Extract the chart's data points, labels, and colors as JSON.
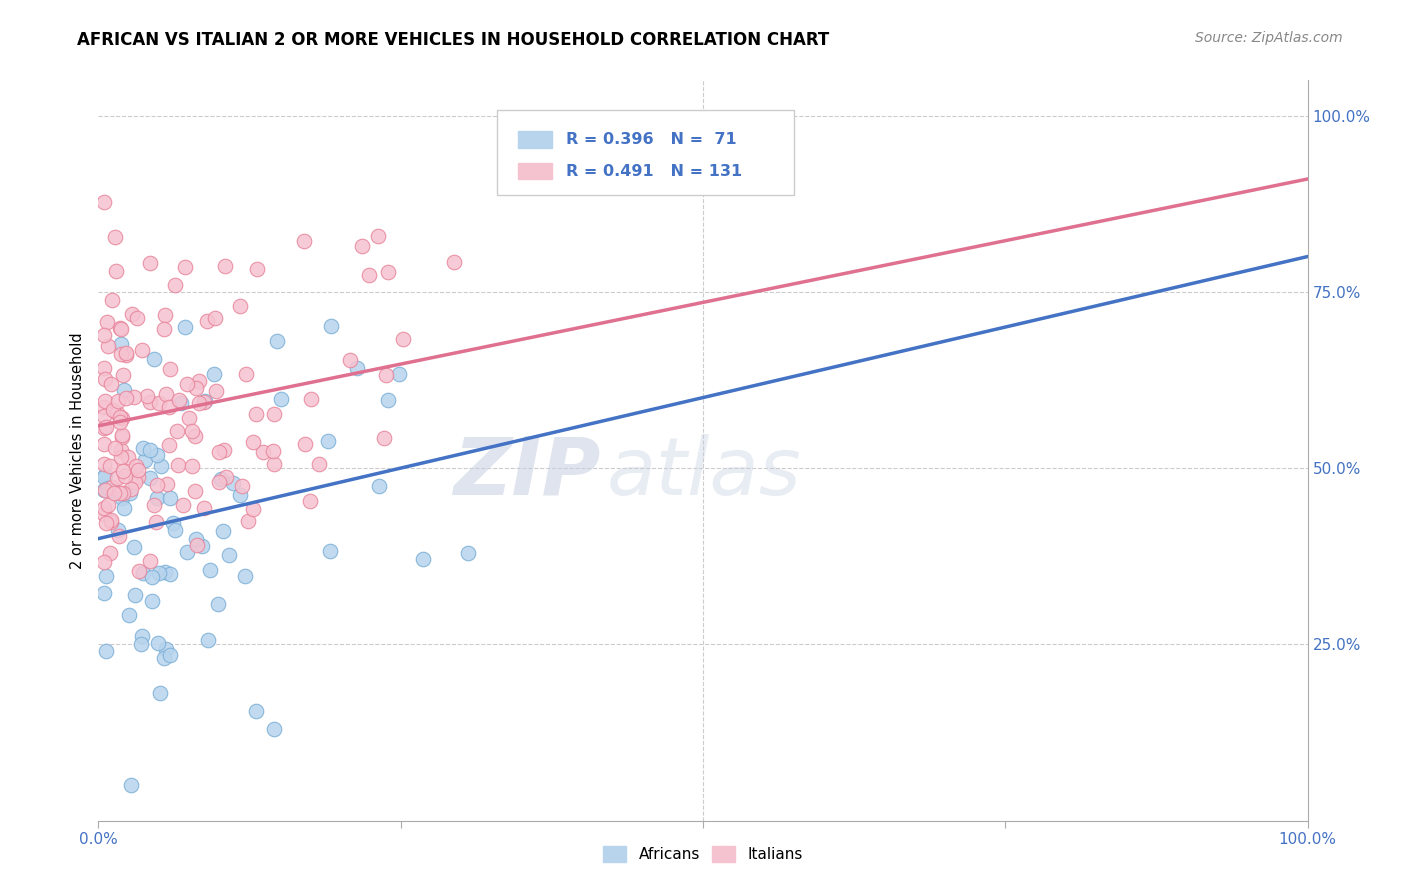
{
  "title": "AFRICAN VS ITALIAN 2 OR MORE VEHICLES IN HOUSEHOLD CORRELATION CHART",
  "source_text": "Source: ZipAtlas.com",
  "ylabel": "2 or more Vehicles in Household",
  "R_africans": 0.396,
  "N_africans": 71,
  "R_italians": 0.491,
  "N_italians": 131,
  "color_african_fill": "#b8d4ed",
  "color_african_edge": "#7aaed6",
  "color_italian_fill": "#f5c2d0",
  "color_italian_edge": "#e8849a",
  "color_african_line": "#4472c4",
  "color_italian_line": "#e07090",
  "watermark_zip": "ZIP",
  "watermark_atlas": "atlas",
  "watermark_color": "#d0dcea",
  "title_fontsize": 12,
  "source_fontsize": 10,
  "label_color_blue": "#4472c4",
  "grid_color": "#cccccc",
  "legend_africans": "Africans",
  "legend_italians": "Italians",
  "xlim": [
    0,
    1
  ],
  "ylim": [
    0,
    1.05
  ],
  "x_ticks": [
    0,
    0.25,
    0.5,
    0.75,
    1.0
  ],
  "y_ticks": [
    0.25,
    0.5,
    0.75,
    1.0
  ],
  "ytick_labels_right": [
    "25.0%",
    "50.0%",
    "75.0%",
    "100.0%"
  ]
}
